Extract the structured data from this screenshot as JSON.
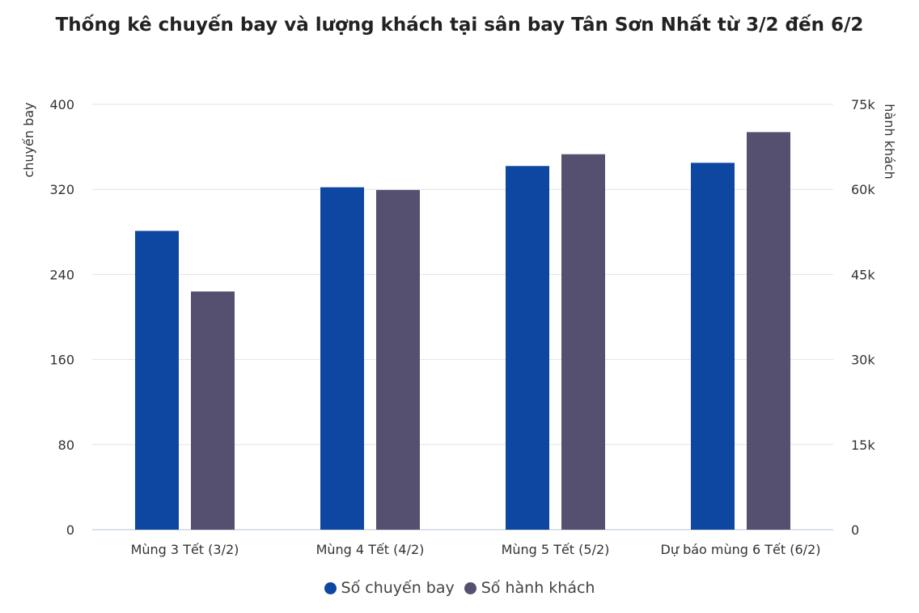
{
  "chart_data": {
    "type": "bar",
    "title": "Thống kê chuyến bay và lượng khách tại sân bay Tân Sơn Nhất từ 3/2 đến 6/2",
    "categories": [
      "Mùng 3 Tết (3/2)",
      "Mùng 4 Tết (4/2)",
      "Mùng 5 Tết (5/2)",
      "Dự báo mùng 6 Tết (6/2)"
    ],
    "series": [
      {
        "name": "Số chuyến bay",
        "axis": "left",
        "color": "#0d47a1",
        "values": [
          281,
          322,
          342,
          345
        ]
      },
      {
        "name": "Số hành khách",
        "axis": "right",
        "color": "#555070",
        "values": [
          42000,
          59900,
          66200,
          70100
        ]
      }
    ],
    "y_left": {
      "label": "chuyến bay",
      "ylim": [
        0,
        400
      ],
      "ticks": [
        0,
        80,
        160,
        240,
        320,
        400
      ],
      "tick_labels": [
        "0",
        "80",
        "160",
        "240",
        "320",
        "400"
      ]
    },
    "y_right": {
      "label": "hành khách",
      "ylim": [
        0,
        75000
      ],
      "ticks": [
        0,
        15000,
        30000,
        45000,
        60000,
        75000
      ],
      "tick_labels": [
        "0",
        "15k",
        "30k",
        "45k",
        "60k",
        "75k"
      ]
    },
    "grid": true,
    "legend": "bottom-center"
  }
}
